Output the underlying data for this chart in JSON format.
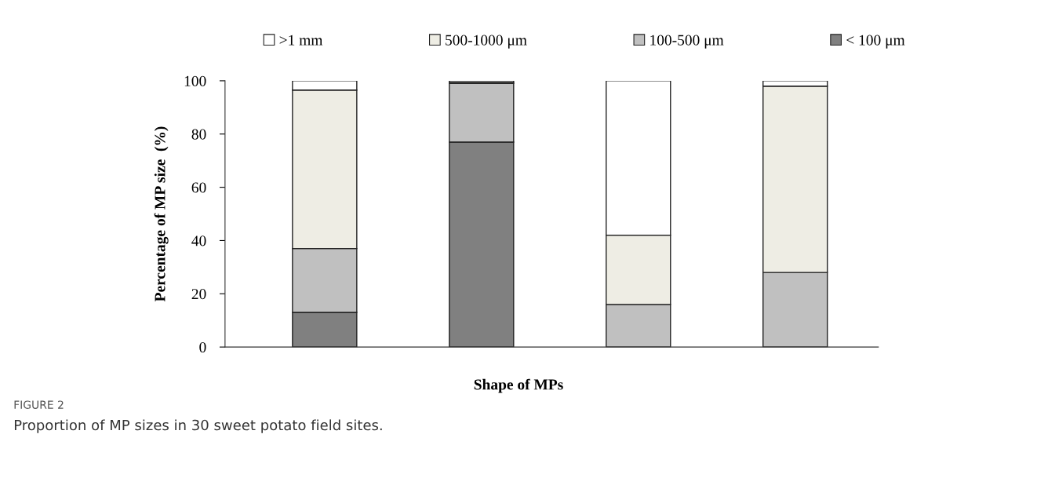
{
  "chart_data": {
    "type": "bar",
    "stacked": true,
    "categories": [
      null,
      null,
      null,
      null
    ],
    "series": [
      {
        "name": "< 100 μm",
        "color": "#808080",
        "values": [
          13,
          77,
          0,
          0
        ]
      },
      {
        "name": "100-500 μm",
        "color": "#c0c0c0",
        "values": [
          24,
          22,
          16,
          28
        ]
      },
      {
        "name": "500-1000 μm",
        "color": "#eeede4",
        "values": [
          59.5,
          0.5,
          26,
          70
        ]
      },
      {
        "name": ">1 mm",
        "color": "#ffffff",
        "values": [
          3.5,
          0.5,
          58,
          2
        ]
      }
    ],
    "xlabel": "Shape of MPs",
    "ylabel": "Percentage of MP size  (%)",
    "ylim": [
      0,
      100
    ],
    "yticks": [
      0,
      20,
      40,
      60,
      80,
      100
    ],
    "legend": "top",
    "grid": false,
    "annotations": [
      "FIGURE 2",
      "Proportion of MP sizes in 30 sweet potato field sites."
    ]
  }
}
